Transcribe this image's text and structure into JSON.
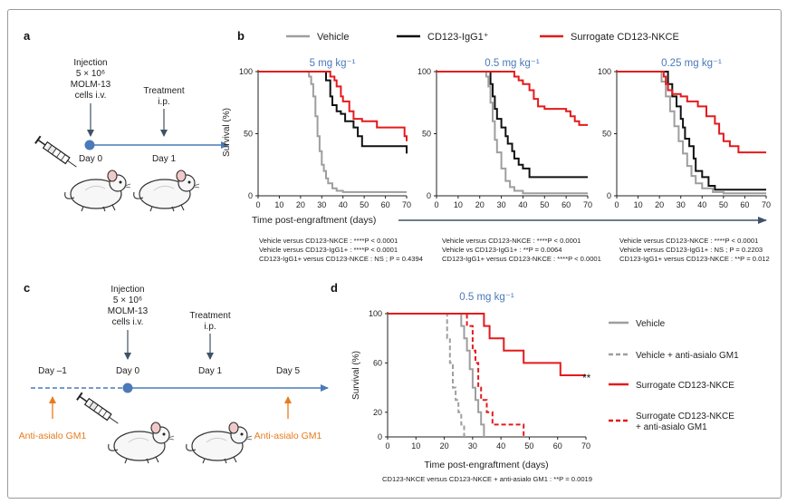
{
  "panel_labels": {
    "a": "a",
    "b": "b",
    "c": "c",
    "d": "d"
  },
  "colors": {
    "vehicle": "#9e9e9e",
    "igg1": "#111111",
    "nkce": "#e41a1c",
    "timeline": "#4a7ab8",
    "day0_dot": "#4a7ab8",
    "dose_label": "#4a7ab8",
    "antiasialo": "#e87b1d",
    "arrow": "#3f5266"
  },
  "panel_a": {
    "injection": [
      "Injection",
      "5 × 10⁶",
      "MOLM-13",
      "cells i.v."
    ],
    "treatment": [
      "Treatment",
      "i.p."
    ],
    "day0": "Day 0",
    "day1": "Day 1"
  },
  "panel_c": {
    "injection": [
      "Injection",
      "5 × 10⁶",
      "MOLM-13",
      "cells i.v."
    ],
    "treatment": [
      "Treatment",
      "i.p."
    ],
    "days": [
      "Day –1",
      "Day 0",
      "Day 1",
      "Day 5"
    ],
    "anti_left": "Anti-asialo GM1",
    "anti_right": "Anti-asialo GM1"
  },
  "legend_b": [
    {
      "label": "Vehicle",
      "color_key": "vehicle"
    },
    {
      "label": "CD123-IgG1⁺",
      "color_key": "igg1"
    },
    {
      "label": "Surrogate CD123-NKCE",
      "color_key": "nkce"
    }
  ],
  "panel_b": {
    "ylabel": "Survival (%)",
    "xlabel": "Time post-engraftment (days)",
    "stats": [
      [
        "Vehicle versus CD123-NKCE : ****P < 0.0001",
        "Vehicle versus CD123-IgG1+ : ****P < 0.0001",
        "CD123-IgG1+ versus CD123-NKCE : NS ; P = 0.4394"
      ],
      [
        "Vehicle versus CD123-NKCE : ****P < 0.0001",
        "Vehicle vs CD123-IgG1+ : **P = 0.0064",
        "CD123-IgG1+ versus CD123-NKCE : ****P < 0.0001"
      ],
      [
        "Vehicle versus CD123-NKCE : ****P < 0.0001",
        "Vehicle versus CD123-IgG1+ : NS ; P = 0.2203",
        "CD123-IgG1+ versus CD123-NKCE : **P = 0.012"
      ]
    ]
  },
  "panel_d": {
    "ylabel": "Survival (%)",
    "xlabel": "Time post-engraftment (days)",
    "significance": "**",
    "stat": "CD123-NKCE versus CD123-NKCE + anti-asialo GM1 : **P = 0.0019",
    "legend": [
      {
        "label": [
          "Vehicle"
        ],
        "color_key": "vehicle",
        "dash": false
      },
      {
        "label": [
          "Vehicle + anti-asialo GM1"
        ],
        "color_key": "vehicle",
        "dash": true
      },
      {
        "label": [
          "Surrogate CD123-NKCE"
        ],
        "color_key": "nkce",
        "dash": false
      },
      {
        "label": [
          "Surrogate CD123-NKCE",
          "+ anti-asialo GM1"
        ],
        "color_key": "nkce",
        "dash": true
      }
    ]
  },
  "chart_data": [
    {
      "type": "line",
      "title": "5 mg kg⁻¹",
      "xlabel": "",
      "ylabel": "Survival (%)",
      "xlim": [
        0,
        70
      ],
      "ylim": [
        0,
        100
      ],
      "xticks": [
        0,
        10,
        20,
        30,
        40,
        50,
        60,
        70
      ],
      "yticks": [
        0,
        50,
        100
      ],
      "series": [
        {
          "name": "Vehicle",
          "color_key": "vehicle",
          "dash": false,
          "points": [
            [
              0,
              100
            ],
            [
              23,
              100
            ],
            [
              24,
              96
            ],
            [
              25,
              90
            ],
            [
              26,
              80
            ],
            [
              27,
              64
            ],
            [
              28,
              48
            ],
            [
              29,
              36
            ],
            [
              30,
              25
            ],
            [
              31,
              20
            ],
            [
              32,
              14
            ],
            [
              33,
              10
            ],
            [
              35,
              6
            ],
            [
              37,
              4
            ],
            [
              40,
              3
            ],
            [
              70,
              3
            ]
          ]
        },
        {
          "name": "CD123-IgG1⁺",
          "color_key": "igg1",
          "dash": false,
          "points": [
            [
              0,
              100
            ],
            [
              31,
              100
            ],
            [
              32,
              93
            ],
            [
              34,
              80
            ],
            [
              35,
              73
            ],
            [
              37,
              68
            ],
            [
              39,
              66
            ],
            [
              41,
              60
            ],
            [
              45,
              55
            ],
            [
              47,
              48
            ],
            [
              49,
              40
            ],
            [
              53,
              40
            ],
            [
              69,
              40
            ],
            [
              70,
              34
            ]
          ]
        },
        {
          "name": "Surrogate CD123-NKCE",
          "color_key": "nkce",
          "dash": false,
          "points": [
            [
              0,
              100
            ],
            [
              32,
              100
            ],
            [
              34,
              96
            ],
            [
              36,
              93
            ],
            [
              37,
              88
            ],
            [
              39,
              80
            ],
            [
              40,
              76
            ],
            [
              43,
              68
            ],
            [
              45,
              62
            ],
            [
              49,
              60
            ],
            [
              52,
              60
            ],
            [
              56,
              55
            ],
            [
              67,
              55
            ],
            [
              69,
              48
            ],
            [
              70,
              44
            ]
          ]
        }
      ]
    },
    {
      "type": "line",
      "title": "0.5 mg kg⁻¹",
      "xlabel": "",
      "ylabel": "",
      "xlim": [
        0,
        70
      ],
      "ylim": [
        0,
        100
      ],
      "xticks": [
        0,
        10,
        20,
        30,
        40,
        50,
        60,
        70
      ],
      "yticks": [
        0,
        50,
        100
      ],
      "series": [
        {
          "name": "Vehicle",
          "color_key": "vehicle",
          "dash": false,
          "points": [
            [
              0,
              100
            ],
            [
              22,
              100
            ],
            [
              23,
              96
            ],
            [
              24,
              88
            ],
            [
              25,
              75
            ],
            [
              26,
              60
            ],
            [
              27,
              45
            ],
            [
              28,
              35
            ],
            [
              30,
              22
            ],
            [
              32,
              12
            ],
            [
              34,
              7
            ],
            [
              36,
              4
            ],
            [
              40,
              2
            ],
            [
              70,
              2
            ]
          ]
        },
        {
          "name": "CD123-IgG1⁺",
          "color_key": "igg1",
          "dash": false,
          "points": [
            [
              0,
              100
            ],
            [
              24,
              100
            ],
            [
              25,
              90
            ],
            [
              26,
              80
            ],
            [
              27,
              70
            ],
            [
              28,
              62
            ],
            [
              30,
              55
            ],
            [
              32,
              48
            ],
            [
              33,
              42
            ],
            [
              35,
              36
            ],
            [
              36,
              30
            ],
            [
              38,
              25
            ],
            [
              40,
              22
            ],
            [
              43,
              15
            ],
            [
              70,
              15
            ]
          ]
        },
        {
          "name": "Surrogate CD123-NKCE",
          "color_key": "nkce",
          "dash": false,
          "points": [
            [
              0,
              100
            ],
            [
              35,
              100
            ],
            [
              36,
              96
            ],
            [
              38,
              93
            ],
            [
              40,
              90
            ],
            [
              43,
              85
            ],
            [
              45,
              78
            ],
            [
              47,
              72
            ],
            [
              50,
              70
            ],
            [
              55,
              70
            ],
            [
              60,
              68
            ],
            [
              62,
              64
            ],
            [
              64,
              60
            ],
            [
              66,
              57
            ],
            [
              70,
              57
            ]
          ]
        }
      ]
    },
    {
      "type": "line",
      "title": "0.25 mg kg⁻¹",
      "xlabel": "",
      "ylabel": "",
      "xlim": [
        0,
        70
      ],
      "ylim": [
        0,
        100
      ],
      "xticks": [
        0,
        10,
        20,
        30,
        40,
        50,
        60,
        70
      ],
      "yticks": [
        0,
        50,
        100
      ],
      "series": [
        {
          "name": "Vehicle",
          "color_key": "vehicle",
          "dash": false,
          "points": [
            [
              0,
              100
            ],
            [
              19,
              100
            ],
            [
              21,
              92
            ],
            [
              23,
              80
            ],
            [
              25,
              68
            ],
            [
              27,
              56
            ],
            [
              29,
              44
            ],
            [
              31,
              34
            ],
            [
              33,
              24
            ],
            [
              35,
              16
            ],
            [
              37,
              10
            ],
            [
              40,
              6
            ],
            [
              45,
              3
            ],
            [
              50,
              2
            ],
            [
              70,
              2
            ]
          ]
        },
        {
          "name": "CD123-IgG1⁺",
          "color_key": "igg1",
          "dash": false,
          "points": [
            [
              0,
              100
            ],
            [
              23,
              100
            ],
            [
              24,
              90
            ],
            [
              26,
              80
            ],
            [
              28,
              72
            ],
            [
              30,
              62
            ],
            [
              31,
              55
            ],
            [
              32,
              46
            ],
            [
              34,
              40
            ],
            [
              36,
              30
            ],
            [
              37,
              20
            ],
            [
              40,
              15
            ],
            [
              43,
              8
            ],
            [
              46,
              5
            ],
            [
              70,
              5
            ]
          ]
        },
        {
          "name": "Surrogate CD123-NKCE",
          "color_key": "nkce",
          "dash": false,
          "points": [
            [
              0,
              100
            ],
            [
              21,
              100
            ],
            [
              22,
              96
            ],
            [
              23,
              90
            ],
            [
              24,
              85
            ],
            [
              26,
              82
            ],
            [
              30,
              80
            ],
            [
              33,
              76
            ],
            [
              38,
              72
            ],
            [
              42,
              64
            ],
            [
              46,
              58
            ],
            [
              48,
              50
            ],
            [
              50,
              44
            ],
            [
              53,
              40
            ],
            [
              57,
              35
            ],
            [
              70,
              35
            ]
          ]
        }
      ]
    },
    {
      "type": "line",
      "title": "0.5 mg kg⁻¹",
      "xlabel": "Time post-engraftment (days)",
      "ylabel": "Survival (%)",
      "xlim": [
        0,
        70
      ],
      "ylim": [
        0,
        100
      ],
      "xticks": [
        0,
        10,
        20,
        30,
        40,
        50,
        60,
        70
      ],
      "yticks": [
        0,
        20,
        60,
        100
      ],
      "series": [
        {
          "name": "Vehicle",
          "color_key": "vehicle",
          "dash": false,
          "points": [
            [
              0,
              100
            ],
            [
              25,
              100
            ],
            [
              26,
              90
            ],
            [
              27,
              80
            ],
            [
              28,
              70
            ],
            [
              29,
              55
            ],
            [
              30,
              40
            ],
            [
              31,
              30
            ],
            [
              32,
              20
            ],
            [
              33,
              10
            ],
            [
              34,
              0
            ]
          ]
        },
        {
          "name": "Vehicle + anti-asialo GM1",
          "color_key": "vehicle",
          "dash": true,
          "points": [
            [
              0,
              100
            ],
            [
              20,
              100
            ],
            [
              21,
              80
            ],
            [
              22,
              60
            ],
            [
              23,
              40
            ],
            [
              24,
              30
            ],
            [
              25,
              20
            ],
            [
              26,
              10
            ],
            [
              27,
              0
            ]
          ]
        },
        {
          "name": "Surrogate CD123-NKCE",
          "color_key": "nkce",
          "dash": false,
          "points": [
            [
              0,
              100
            ],
            [
              33,
              100
            ],
            [
              34,
              90
            ],
            [
              36,
              80
            ],
            [
              40,
              80
            ],
            [
              41,
              70
            ],
            [
              47,
              70
            ],
            [
              48,
              60
            ],
            [
              60,
              60
            ],
            [
              61,
              50
            ],
            [
              70,
              50
            ]
          ]
        },
        {
          "name": "Surrogate CD123-NKCE + anti-asialo GM1",
          "color_key": "nkce",
          "dash": true,
          "points": [
            [
              0,
              100
            ],
            [
              27,
              100
            ],
            [
              28,
              90
            ],
            [
              30,
              70
            ],
            [
              31,
              60
            ],
            [
              32,
              40
            ],
            [
              33,
              30
            ],
            [
              35,
              20
            ],
            [
              37,
              10
            ],
            [
              47,
              10
            ],
            [
              48,
              0
            ]
          ]
        }
      ]
    }
  ]
}
